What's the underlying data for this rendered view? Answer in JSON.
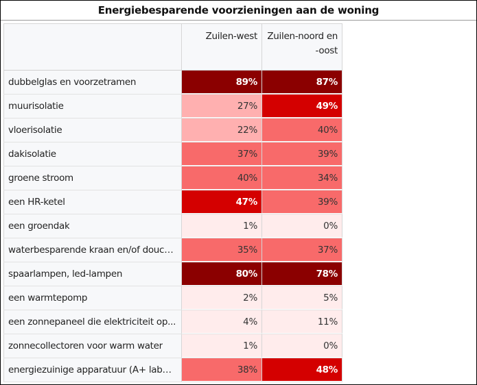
{
  "chart_data": {
    "type": "table",
    "title": "Energiebesparende voorzieningen aan de woning",
    "columns": [
      "Zuilen-west",
      "Zuilen-noord en -oost"
    ],
    "rows": [
      {
        "label": "dubbelglas en voorzetramen",
        "values": [
          89,
          87
        ]
      },
      {
        "label": "muurisolatie",
        "values": [
          27,
          49
        ]
      },
      {
        "label": "vloerisolatie",
        "values": [
          22,
          40
        ]
      },
      {
        "label": "dakisolatie",
        "values": [
          37,
          39
        ]
      },
      {
        "label": "groene stroom",
        "values": [
          40,
          34
        ]
      },
      {
        "label": "een HR-ketel",
        "values": [
          47,
          39
        ]
      },
      {
        "label": "een groendak",
        "values": [
          1,
          0
        ]
      },
      {
        "label": "waterbesparende kraan en/of douche...",
        "values": [
          35,
          37
        ]
      },
      {
        "label": "spaarlampen, led-lampen",
        "values": [
          80,
          78
        ]
      },
      {
        "label": "een warmtepomp",
        "values": [
          2,
          5
        ]
      },
      {
        "label": "een zonnepaneel die elektriciteit op...",
        "values": [
          4,
          11
        ]
      },
      {
        "label": "zonnecollectoren voor warm water",
        "values": [
          1,
          0
        ]
      },
      {
        "label": "energiezuinige apparatuur (A+ label ...",
        "values": [
          38,
          48
        ]
      }
    ],
    "unit": "%",
    "colors": {
      "very_low": "#ffecec",
      "low": "#ffb0b0",
      "mid": "#f86a6a",
      "high": "#d40000",
      "very_high": "#8b0000",
      "text_light": "#ffffff",
      "text_dark": "#333333"
    }
  }
}
